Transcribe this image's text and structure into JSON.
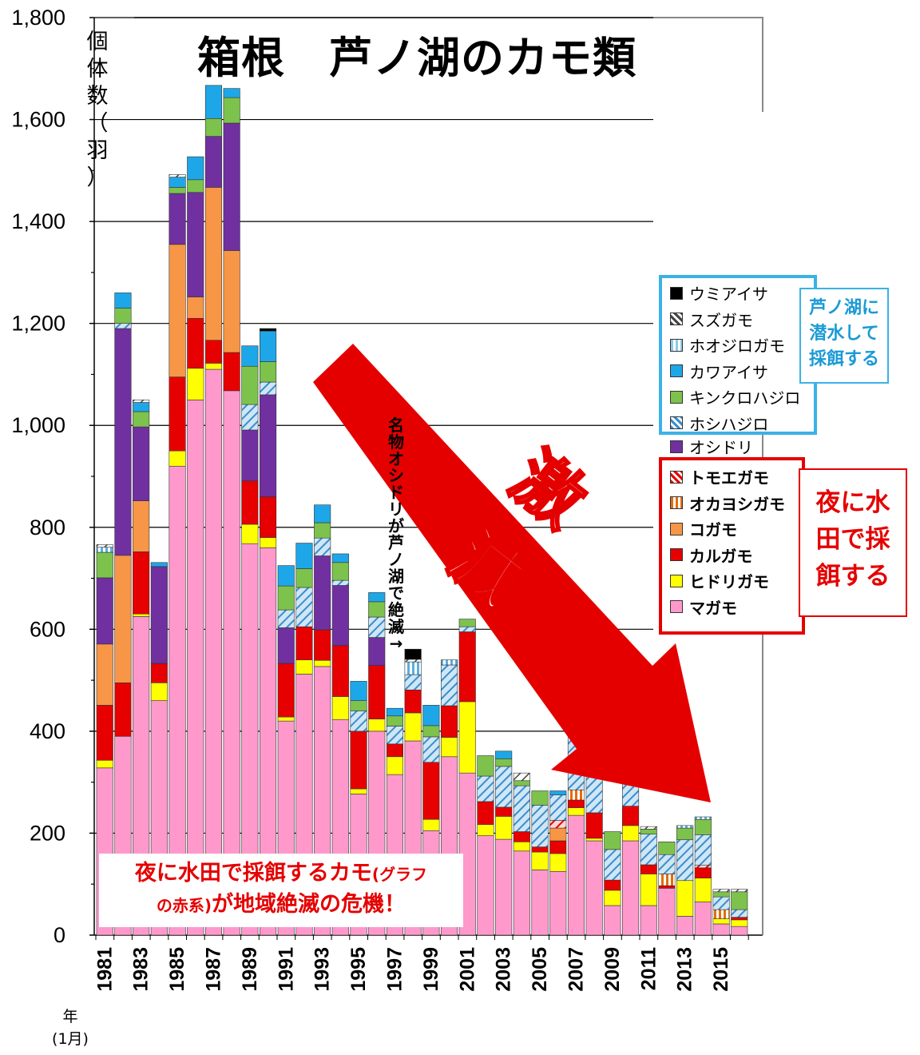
{
  "title": "箱根　芦ノ湖のカモ類",
  "y_unit_label": "個体数（羽）",
  "x_unit_label": "年\n(1月)",
  "side_note": "名物オシドリが芦ノ湖で絶滅→",
  "drastic_decline_label": "激減",
  "legend_diving_group": [
    {
      "name": "ウミアイサ",
      "color": "#000000",
      "pattern": "solid",
      "icon": "solid-swatch"
    },
    {
      "name": "スズガモ",
      "color": "#444444",
      "pattern": "diag",
      "icon": "hatched-swatch"
    },
    {
      "name": "ホオジロガモ",
      "color": "#8fc9e6",
      "pattern": "vert",
      "icon": "striped-swatch"
    },
    {
      "name": "カワアイサ",
      "color": "#1ea7e8",
      "pattern": "solid",
      "icon": "solid-swatch"
    },
    {
      "name": "キンクロハジロ",
      "color": "#7dc24d",
      "pattern": "solid",
      "icon": "solid-swatch"
    },
    {
      "name": "ホシハジロ",
      "color": "#3a8ecb",
      "pattern": "diag",
      "icon": "hatched-swatch"
    },
    {
      "name": "オシドリ",
      "color": "#7030a0",
      "pattern": "solid",
      "icon": "solid-swatch"
    }
  ],
  "legend_paddy_group": [
    {
      "name": "トモエガモ",
      "color": "#e60000",
      "pattern": "diag",
      "icon": "hatched-swatch"
    },
    {
      "name": "オカヨシガモ",
      "color": "#e46c0a",
      "pattern": "vert",
      "icon": "striped-swatch"
    },
    {
      "name": "コガモ",
      "color": "#f79646",
      "pattern": "solid",
      "icon": "solid-swatch"
    },
    {
      "name": "カルガモ",
      "color": "#e60000",
      "pattern": "solid",
      "icon": "solid-swatch"
    },
    {
      "name": "ヒドリガモ",
      "color": "#ffff00",
      "pattern": "solid",
      "icon": "solid-swatch"
    },
    {
      "name": "マガモ",
      "color": "#ff99cc",
      "pattern": "solid",
      "icon": "solid-swatch"
    }
  ],
  "note_diving": "芦ノ湖に潜水して採餌する",
  "note_diving_lines": [
    "芦ノ湖に",
    "潜水して",
    "採餌する"
  ],
  "note_paddy_lines": [
    "夜に水",
    "田で採",
    "餌する"
  ],
  "warning_line1": "夜に水田で採餌するカモ",
  "warning_line1_small": "(グラフ",
  "warning_line2_small": "の赤系)",
  "warning_line2": "が地域絶滅の危機！",
  "colors": {
    "decline_arrow": "#e50000",
    "diving_box": "#3bb2e6",
    "paddy_box": "#e50000"
  },
  "chart_data": {
    "type": "bar",
    "stacked": true,
    "ylim": [
      0,
      1800
    ],
    "y_ticks": [
      "0",
      "200",
      "400",
      "600",
      "800",
      "1,000",
      "1,200",
      "1,400",
      "1,600",
      "1,800"
    ],
    "x_tick_labels": [
      "1981",
      "1983",
      "1985",
      "1987",
      "1989",
      "1991",
      "1993",
      "1995",
      "1997",
      "1999",
      "2001",
      "2003",
      "2005",
      "2007",
      "2009",
      "2011",
      "2013",
      "2015"
    ],
    "grid": "horizontal",
    "categories": [
      "1981",
      "1982",
      "1983",
      "1984",
      "1985",
      "1986",
      "1987",
      "1988",
      "1989",
      "1990",
      "1991",
      "1992",
      "1993",
      "1994",
      "1995",
      "1996",
      "1997",
      "1998",
      "1999",
      "2000",
      "2001",
      "2002",
      "2003",
      "2004",
      "2005",
      "2006",
      "2007",
      "2008",
      "2009",
      "2010",
      "2011",
      "2012",
      "2013",
      "2014",
      "2015",
      "2016"
    ],
    "series": [
      {
        "name": "マガモ",
        "color": "#ff99cc",
        "pattern": "solid",
        "values": [
          328,
          390,
          625,
          460,
          920,
          1050,
          1110,
          1068,
          768,
          760,
          420,
          512,
          527,
          423,
          277,
          400,
          315,
          381,
          205,
          350,
          318,
          195,
          188,
          165,
          128,
          125,
          235,
          185,
          58,
          185,
          58,
          92,
          37,
          65,
          22,
          17
        ]
      },
      {
        "name": "ヒドリガモ",
        "color": "#ffff00",
        "pattern": "solid",
        "values": [
          15,
          0,
          5,
          35,
          30,
          62,
          12,
          0,
          38,
          20,
          8,
          28,
          12,
          45,
          10,
          24,
          35,
          55,
          22,
          38,
          140,
          22,
          45,
          18,
          35,
          35,
          15,
          5,
          30,
          30,
          62,
          0,
          70,
          47,
          10,
          13
        ]
      },
      {
        "name": "カルガモ",
        "color": "#e60000",
        "pattern": "solid",
        "values": [
          108,
          105,
          122,
          38,
          145,
          98,
          45,
          75,
          85,
          80,
          105,
          65,
          60,
          100,
          113,
          105,
          25,
          45,
          112,
          62,
          137,
          45,
          18,
          20,
          10,
          25,
          15,
          50,
          20,
          38,
          18,
          5,
          0,
          20,
          0,
          5
        ]
      },
      {
        "name": "コガモ",
        "color": "#f79646",
        "pattern": "solid",
        "values": [
          120,
          250,
          100,
          0,
          260,
          42,
          300,
          200,
          0,
          0,
          0,
          0,
          0,
          0,
          0,
          0,
          0,
          0,
          0,
          0,
          0,
          0,
          0,
          0,
          0,
          25,
          0,
          0,
          0,
          0,
          0,
          0,
          0,
          0,
          0,
          0
        ]
      },
      {
        "name": "オカヨシガモ",
        "color": "#e46c0a",
        "pattern": "vert",
        "values": [
          0,
          0,
          0,
          0,
          0,
          0,
          0,
          0,
          0,
          0,
          0,
          0,
          0,
          0,
          0,
          0,
          0,
          0,
          0,
          0,
          0,
          0,
          0,
          0,
          0,
          0,
          20,
          0,
          0,
          0,
          0,
          23,
          0,
          0,
          18,
          0
        ]
      },
      {
        "name": "トモエガモ",
        "color": "#e60000",
        "pattern": "diag",
        "values": [
          0,
          0,
          0,
          0,
          0,
          0,
          0,
          0,
          0,
          0,
          0,
          0,
          0,
          0,
          0,
          0,
          0,
          0,
          0,
          0,
          0,
          0,
          0,
          0,
          0,
          15,
          0,
          0,
          0,
          0,
          0,
          0,
          0,
          5,
          0,
          0
        ]
      },
      {
        "name": "オシドリ",
        "color": "#7030a0",
        "pattern": "solid",
        "values": [
          130,
          445,
          145,
          190,
          100,
          205,
          100,
          250,
          100,
          200,
          70,
          0,
          145,
          118,
          0,
          55,
          0,
          0,
          0,
          0,
          0,
          0,
          0,
          0,
          0,
          0,
          0,
          0,
          0,
          0,
          0,
          0,
          0,
          0,
          0,
          0
        ]
      },
      {
        "name": "ホシハジロ",
        "color": "#3a8ecb",
        "pattern": "diag",
        "values": [
          0,
          10,
          0,
          0,
          0,
          0,
          0,
          0,
          50,
          25,
          35,
          77,
          35,
          10,
          40,
          40,
          35,
          30,
          50,
          80,
          10,
          50,
          80,
          90,
          82,
          50,
          110,
          75,
          60,
          45,
          60,
          38,
          80,
          60,
          25,
          15
        ]
      },
      {
        "name": "キンクロハジロ",
        "color": "#7dc24d",
        "pattern": "solid",
        "values": [
          50,
          30,
          30,
          0,
          12,
          25,
          35,
          50,
          75,
          40,
          47,
          37,
          30,
          35,
          20,
          30,
          20,
          0,
          22,
          0,
          15,
          40,
          15,
          10,
          28,
          0,
          10,
          15,
          35,
          15,
          10,
          25,
          23,
          30,
          10,
          35
        ]
      },
      {
        "name": "カワアイサ",
        "color": "#1ea7e8",
        "pattern": "solid",
        "values": [
          0,
          30,
          18,
          8,
          20,
          45,
          65,
          18,
          40,
          60,
          40,
          50,
          35,
          17,
          38,
          18,
          15,
          0,
          40,
          0,
          0,
          0,
          15,
          0,
          0,
          8,
          0,
          0,
          0,
          0,
          0,
          0,
          0,
          0,
          0,
          0
        ]
      },
      {
        "name": "ホオジロガモ",
        "color": "#8fc9e6",
        "pattern": "vert",
        "values": [
          10,
          0,
          0,
          0,
          0,
          0,
          0,
          0,
          0,
          0,
          0,
          0,
          0,
          0,
          0,
          0,
          0,
          25,
          0,
          10,
          0,
          0,
          0,
          0,
          0,
          0,
          0,
          5,
          0,
          0,
          0,
          0,
          5,
          5,
          0,
          0
        ]
      },
      {
        "name": "スズガモ",
        "color": "#444444",
        "pattern": "diag",
        "values": [
          5,
          0,
          5,
          0,
          5,
          0,
          0,
          0,
          0,
          0,
          0,
          0,
          0,
          0,
          0,
          0,
          0,
          5,
          0,
          0,
          0,
          0,
          0,
          15,
          0,
          0,
          0,
          5,
          0,
          0,
          5,
          0,
          0,
          0,
          5,
          5
        ]
      },
      {
        "name": "ウミアイサ",
        "color": "#000000",
        "pattern": "solid",
        "values": [
          0,
          0,
          0,
          0,
          0,
          0,
          0,
          0,
          0,
          5,
          0,
          0,
          0,
          0,
          0,
          0,
          0,
          20,
          0,
          0,
          0,
          0,
          0,
          0,
          0,
          0,
          0,
          0,
          0,
          0,
          0,
          0,
          0,
          0,
          0,
          0
        ]
      }
    ]
  }
}
